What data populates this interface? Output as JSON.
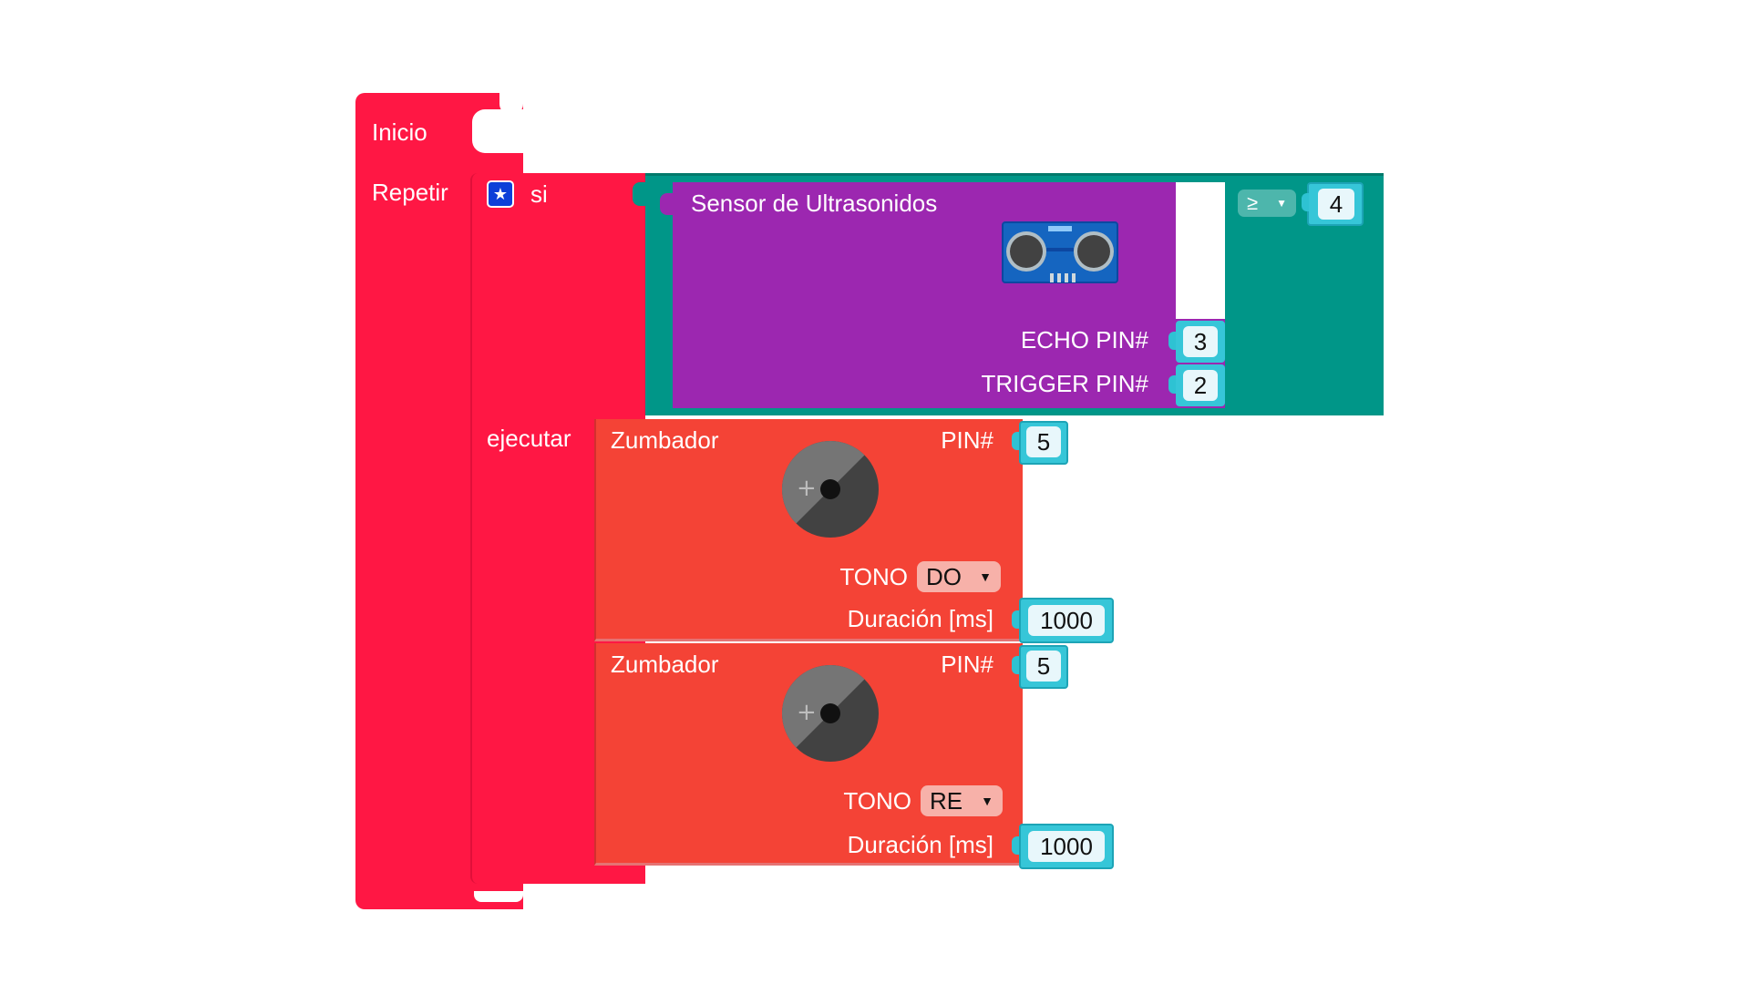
{
  "main_block": {
    "label": "Inicio",
    "color": "#ff1744"
  },
  "repeat": {
    "label": "Repetir"
  },
  "if_block": {
    "si_label": "si",
    "do_label": "ejecutar",
    "color": "#ff1744"
  },
  "compare": {
    "operator": "≥",
    "value": "4",
    "color": "#009688"
  },
  "ultrasonic": {
    "title": "Sensor de Ultrasonidos",
    "echo_label": "ECHO PIN#",
    "echo_value": "3",
    "trigger_label": "TRIGGER PIN#",
    "trigger_value": "2",
    "color": "#9c27b0"
  },
  "buzzers": [
    {
      "title": "Zumbador",
      "pin_label": "PIN#",
      "pin_value": "5",
      "tone_label": "TONO",
      "tone_value": "DO",
      "duration_label": "Duración [ms]",
      "duration_value": "1000"
    },
    {
      "title": "Zumbador",
      "pin_label": "PIN#",
      "pin_value": "5",
      "tone_label": "TONO",
      "tone_value": "RE",
      "duration_label": "Duración [ms]",
      "duration_value": "1000"
    }
  ],
  "colors": {
    "buzzer": "#f44336",
    "value_slot": "#36c6d8"
  }
}
